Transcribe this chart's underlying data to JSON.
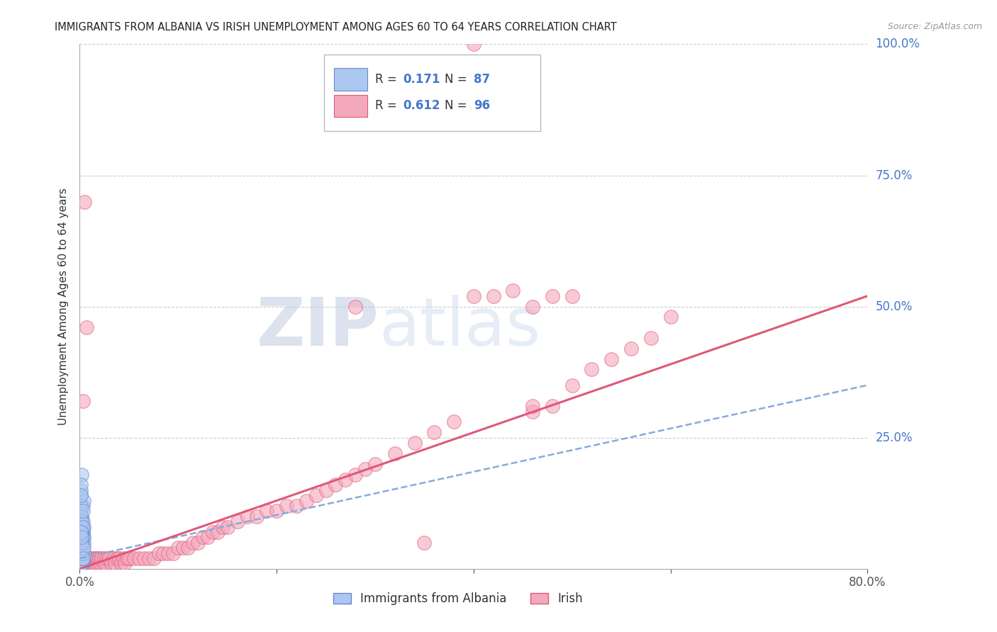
{
  "title": "IMMIGRANTS FROM ALBANIA VS IRISH UNEMPLOYMENT AMONG AGES 60 TO 64 YEARS CORRELATION CHART",
  "source": "Source: ZipAtlas.com",
  "ylabel": "Unemployment Among Ages 60 to 64 years",
  "xlim": [
    0.0,
    0.8
  ],
  "ylim": [
    0.0,
    1.0
  ],
  "xticks": [
    0.0,
    0.2,
    0.4,
    0.6,
    0.8
  ],
  "xtick_labels": [
    "0.0%",
    "",
    "",
    "",
    "80.0%"
  ],
  "yticks": [
    0.0,
    0.25,
    0.5,
    0.75,
    1.0
  ],
  "ytick_labels": [
    "",
    "25.0%",
    "50.0%",
    "75.0%",
    "100.0%"
  ],
  "albania_R": 0.171,
  "albania_N": 87,
  "irish_R": 0.612,
  "irish_N": 96,
  "albania_color": "#adc8f0",
  "irish_color": "#f4a8bc",
  "albania_edge_color": "#6688cc",
  "irish_edge_color": "#e05878",
  "albania_trend_color": "#88aadd",
  "irish_trend_color": "#e05878",
  "legend_label_albania": "Immigrants from Albania",
  "legend_label_irish": "Irish",
  "watermark1": "ZIP",
  "watermark2": "atlas",
  "background_color": "#ffffff",
  "grid_color": "#cccccc",
  "axis_color": "#aaaaaa",
  "title_color": "#222222",
  "right_label_color": "#4477cc",
  "legend_R_color": "#333333",
  "legend_N_color": "#2255aa",
  "albania_trend_x": [
    0.0,
    0.8
  ],
  "albania_trend_y": [
    0.02,
    0.35
  ],
  "irish_trend_x": [
    0.0,
    0.8
  ],
  "irish_trend_y": [
    0.0,
    0.52
  ],
  "albania_scatter_x": [
    0.001,
    0.002,
    0.001,
    0.003,
    0.001,
    0.002,
    0.003,
    0.001,
    0.002,
    0.001,
    0.002,
    0.001,
    0.003,
    0.002,
    0.001,
    0.002,
    0.003,
    0.001,
    0.002,
    0.003,
    0.001,
    0.002,
    0.001,
    0.003,
    0.002,
    0.001,
    0.002,
    0.001,
    0.003,
    0.002,
    0.001,
    0.002,
    0.003,
    0.001,
    0.002,
    0.003,
    0.001,
    0.002,
    0.001,
    0.002,
    0.003,
    0.001,
    0.002,
    0.001,
    0.003,
    0.002,
    0.001,
    0.002,
    0.003,
    0.001,
    0.004,
    0.003,
    0.002,
    0.001,
    0.002,
    0.003,
    0.004,
    0.001,
    0.002,
    0.003,
    0.001,
    0.002,
    0.004,
    0.003,
    0.001,
    0.002,
    0.003,
    0.004,
    0.001,
    0.002,
    0.003,
    0.001,
    0.002,
    0.004,
    0.003,
    0.001,
    0.002,
    0.001,
    0.003,
    0.002,
    0.001,
    0.003,
    0.002,
    0.004,
    0.001,
    0.003,
    0.002
  ],
  "albania_scatter_y": [
    0.02,
    0.03,
    0.01,
    0.02,
    0.01,
    0.03,
    0.02,
    0.01,
    0.02,
    0.01,
    0.03,
    0.02,
    0.01,
    0.03,
    0.02,
    0.01,
    0.02,
    0.03,
    0.01,
    0.02,
    0.01,
    0.03,
    0.02,
    0.01,
    0.02,
    0.03,
    0.01,
    0.02,
    0.01,
    0.03,
    0.02,
    0.01,
    0.02,
    0.03,
    0.01,
    0.02,
    0.01,
    0.03,
    0.02,
    0.01,
    0.02,
    0.03,
    0.01,
    0.02,
    0.01,
    0.03,
    0.02,
    0.01,
    0.02,
    0.03,
    0.08,
    0.12,
    0.18,
    0.14,
    0.1,
    0.07,
    0.06,
    0.15,
    0.09,
    0.05,
    0.11,
    0.04,
    0.13,
    0.07,
    0.16,
    0.06,
    0.09,
    0.05,
    0.12,
    0.08,
    0.04,
    0.1,
    0.07,
    0.03,
    0.06,
    0.14,
    0.09,
    0.05,
    0.11,
    0.07,
    0.03,
    0.08,
    0.05,
    0.04,
    0.07,
    0.02,
    0.06
  ],
  "irish_scatter_x": [
    0.001,
    0.002,
    0.003,
    0.004,
    0.005,
    0.006,
    0.007,
    0.008,
    0.009,
    0.01,
    0.011,
    0.012,
    0.013,
    0.015,
    0.016,
    0.017,
    0.018,
    0.019,
    0.02,
    0.021,
    0.022,
    0.024,
    0.025,
    0.026,
    0.028,
    0.03,
    0.032,
    0.034,
    0.036,
    0.038,
    0.04,
    0.042,
    0.044,
    0.046,
    0.048,
    0.05,
    0.055,
    0.06,
    0.065,
    0.07,
    0.075,
    0.08,
    0.085,
    0.09,
    0.095,
    0.1,
    0.105,
    0.11,
    0.115,
    0.12,
    0.125,
    0.13,
    0.135,
    0.14,
    0.145,
    0.15,
    0.16,
    0.17,
    0.18,
    0.19,
    0.2,
    0.21,
    0.22,
    0.23,
    0.24,
    0.25,
    0.26,
    0.27,
    0.28,
    0.29,
    0.3,
    0.32,
    0.34,
    0.36,
    0.38,
    0.4,
    0.42,
    0.44,
    0.46,
    0.48,
    0.5,
    0.52,
    0.54,
    0.56,
    0.58,
    0.6,
    0.35,
    0.003,
    0.005,
    0.007,
    0.28,
    0.46,
    0.4,
    0.48,
    0.46,
    0.5
  ],
  "irish_scatter_y": [
    0.01,
    0.02,
    0.01,
    0.02,
    0.01,
    0.02,
    0.02,
    0.01,
    0.02,
    0.01,
    0.02,
    0.01,
    0.02,
    0.01,
    0.02,
    0.01,
    0.02,
    0.01,
    0.02,
    0.01,
    0.02,
    0.01,
    0.02,
    0.01,
    0.02,
    0.02,
    0.01,
    0.02,
    0.01,
    0.02,
    0.02,
    0.01,
    0.02,
    0.01,
    0.02,
    0.02,
    0.02,
    0.02,
    0.02,
    0.02,
    0.02,
    0.03,
    0.03,
    0.03,
    0.03,
    0.04,
    0.04,
    0.04,
    0.05,
    0.05,
    0.06,
    0.06,
    0.07,
    0.07,
    0.08,
    0.08,
    0.09,
    0.1,
    0.1,
    0.11,
    0.11,
    0.12,
    0.12,
    0.13,
    0.14,
    0.15,
    0.16,
    0.17,
    0.18,
    0.19,
    0.2,
    0.22,
    0.24,
    0.26,
    0.28,
    0.52,
    0.52,
    0.53,
    0.3,
    0.31,
    0.35,
    0.38,
    0.4,
    0.42,
    0.44,
    0.48,
    0.05,
    0.32,
    0.7,
    0.46,
    0.5,
    0.31,
    1.0,
    0.52,
    0.5,
    0.52
  ]
}
